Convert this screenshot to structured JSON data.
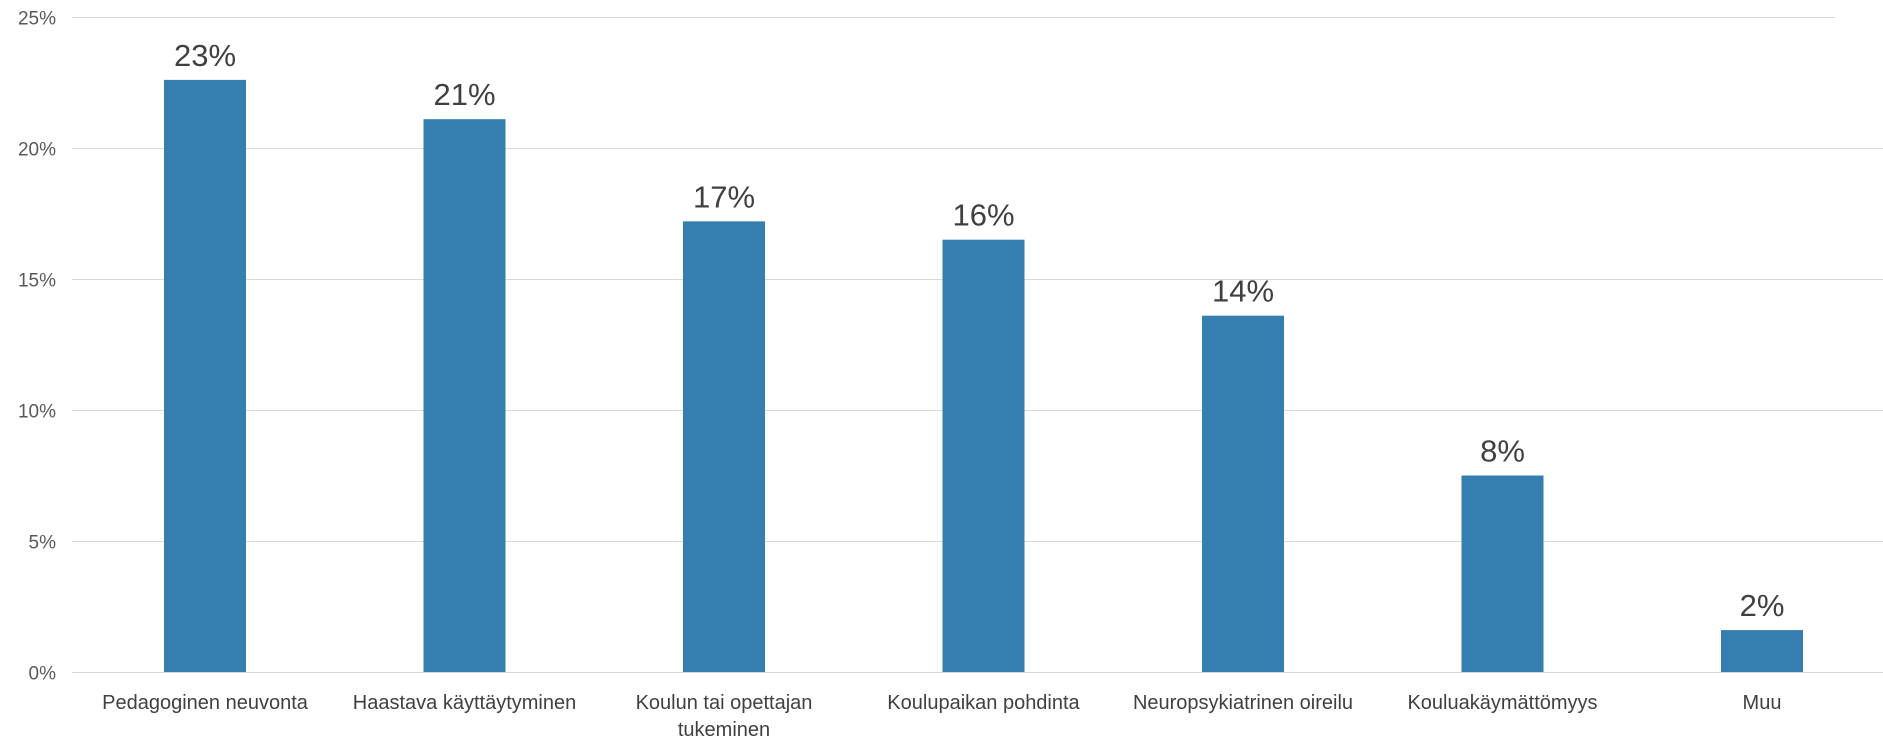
{
  "chart_data": {
    "type": "bar",
    "categories": [
      "Pedagoginen neuvonta",
      "Haastava käyttäytyminen",
      "Koulun tai opettajan tukeminen",
      "Koulupaikan pohdinta",
      "Neuropsykiatrinen oireilu",
      "Kouluakäymättömyys",
      "Muu"
    ],
    "category_lines": [
      [
        "Pedagoginen neuvonta"
      ],
      [
        "Haastava käyttäytyminen"
      ],
      [
        "Koulun tai opettajan",
        "tukeminen"
      ],
      [
        "Koulupaikan pohdinta"
      ],
      [
        "Neuropsykiatrinen oireilu"
      ],
      [
        "Kouluakäymättömyys"
      ],
      [
        "Muu"
      ]
    ],
    "values": [
      22.6,
      21.1,
      17.2,
      16.5,
      13.6,
      7.5,
      1.6
    ],
    "data_labels": [
      "23%",
      "21%",
      "17%",
      "16%",
      "14%",
      "8%",
      "2%"
    ],
    "y_ticks": [
      0,
      5,
      10,
      15,
      20,
      25
    ],
    "y_tick_labels": [
      "0%",
      "5%",
      "10%",
      "15%",
      "20%",
      "25%"
    ],
    "ylim": [
      0,
      25
    ],
    "title": "",
    "xlabel": "",
    "ylabel": "",
    "grid": true,
    "legend": "none",
    "colors": {
      "bar": "#357eb0",
      "grid": "#d9d9d9",
      "tick_text": "#595959",
      "label_text": "#404040"
    }
  }
}
